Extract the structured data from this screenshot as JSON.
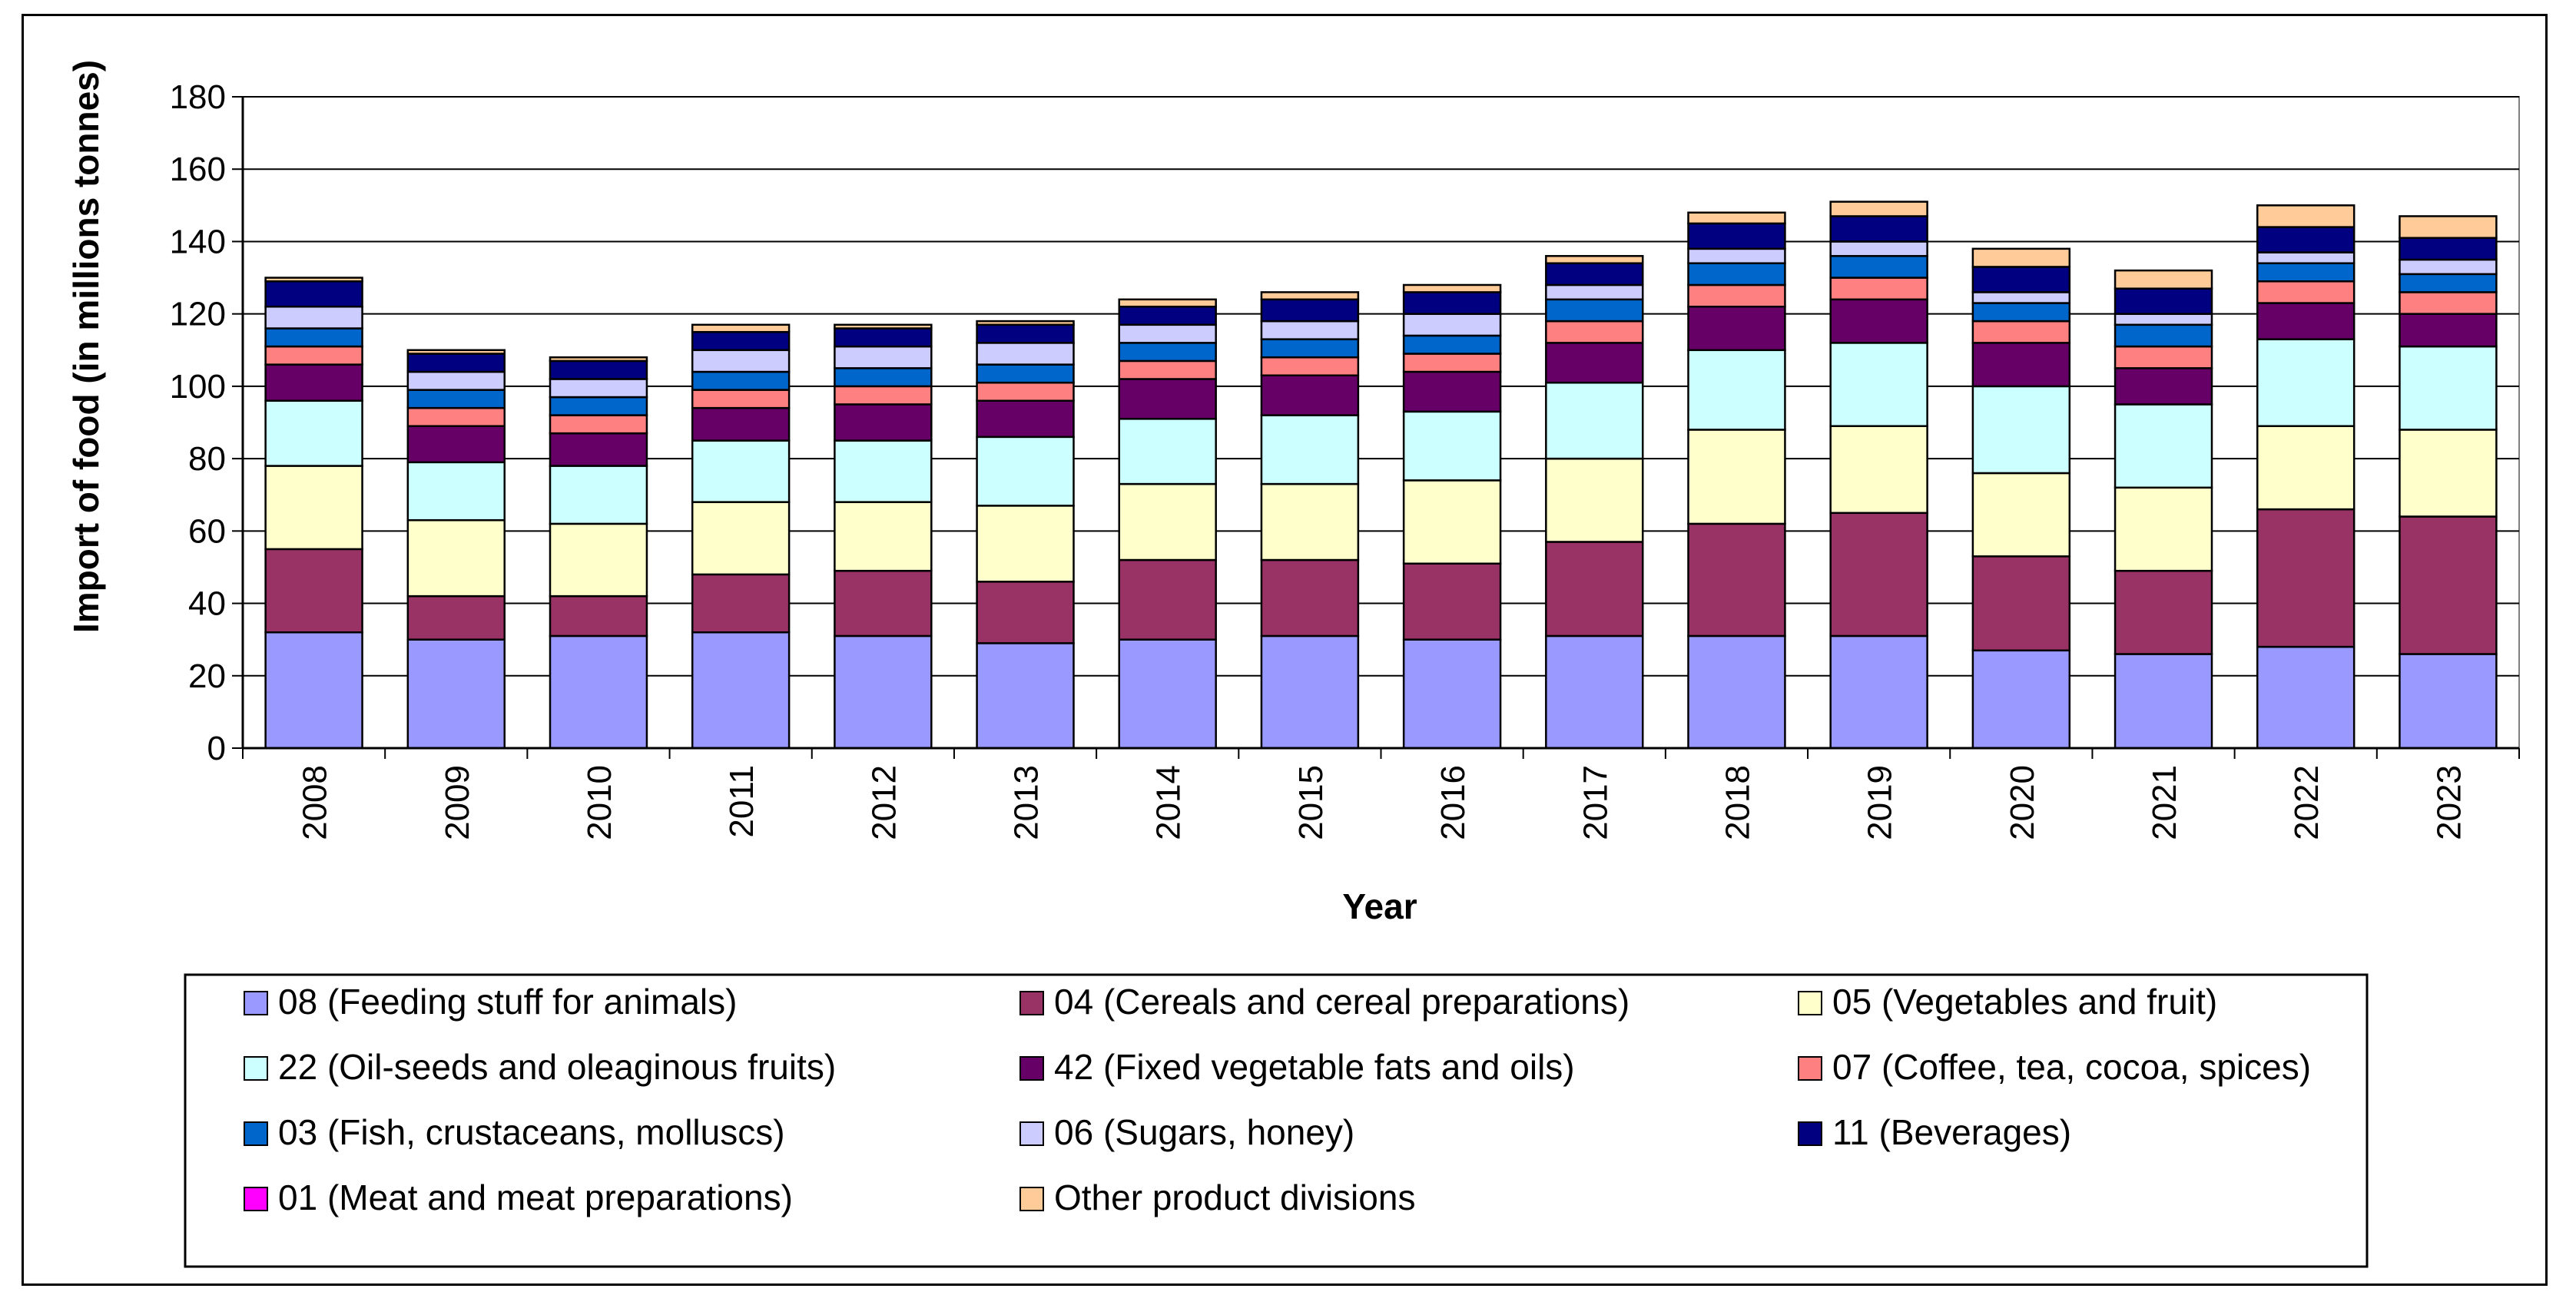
{
  "chart_data": {
    "type": "bar",
    "stacked": true,
    "title": "",
    "xlabel": "Year",
    "ylabel": "Import of food (in millions tonnes)",
    "ylim": [
      0,
      180
    ],
    "yticks": [
      0,
      20,
      40,
      60,
      80,
      100,
      120,
      140,
      160,
      180
    ],
    "grid": true,
    "legend_position": "bottom",
    "categories": [
      "2008",
      "2009",
      "2010",
      "2011",
      "2012",
      "2013",
      "2014",
      "2015",
      "2016",
      "2017",
      "2018",
      "2019",
      "2020",
      "2021",
      "2022",
      "2023"
    ],
    "series": [
      {
        "name": "08 (Feeding stuff for animals)",
        "color": "#9999ff",
        "values": [
          32,
          30,
          31,
          32,
          31,
          29,
          30,
          31,
          30,
          31,
          31,
          31,
          27,
          26,
          28,
          26
        ]
      },
      {
        "name": "04 (Cereals and cereal preparations)",
        "color": "#993366",
        "values": [
          23,
          12,
          11,
          16,
          18,
          17,
          22,
          21,
          21,
          26,
          31,
          34,
          26,
          23,
          38,
          38
        ]
      },
      {
        "name": "05 (Vegetables and fruit)",
        "color": "#ffffcc",
        "values": [
          23,
          21,
          20,
          20,
          19,
          21,
          21,
          21,
          23,
          23,
          26,
          24,
          23,
          23,
          23,
          24
        ]
      },
      {
        "name": "22 (Oil-seeds and oleaginous fruits)",
        "color": "#ccffff",
        "values": [
          18,
          16,
          16,
          17,
          17,
          19,
          18,
          19,
          19,
          21,
          22,
          23,
          24,
          23,
          24,
          23
        ]
      },
      {
        "name": "42 (Fixed vegetable fats and oils)",
        "color": "#660066",
        "values": [
          10,
          10,
          9,
          9,
          10,
          10,
          11,
          11,
          11,
          11,
          12,
          12,
          12,
          10,
          10,
          9
        ]
      },
      {
        "name": "07 (Coffee, tea, cocoa, spices)",
        "color": "#ff8080",
        "values": [
          5,
          5,
          5,
          5,
          5,
          5,
          5,
          5,
          5,
          6,
          6,
          6,
          6,
          6,
          6,
          6
        ]
      },
      {
        "name": "03 (Fish, crustaceans, molluscs)",
        "color": "#0066cc",
        "values": [
          5,
          5,
          5,
          5,
          5,
          5,
          5,
          5,
          5,
          6,
          6,
          6,
          5,
          6,
          5,
          5
        ]
      },
      {
        "name": "06 (Sugars, honey)",
        "color": "#ccccff",
        "values": [
          6,
          5,
          5,
          6,
          6,
          6,
          5,
          5,
          6,
          4,
          4,
          4,
          3,
          3,
          3,
          4
        ]
      },
      {
        "name": "11 (Beverages)",
        "color": "#000080",
        "values": [
          7,
          5,
          5,
          5,
          5,
          5,
          5,
          6,
          6,
          6,
          7,
          7,
          7,
          7,
          7,
          6
        ]
      },
      {
        "name": "01 (Meat and meat preparations)",
        "color": "#ff00ff",
        "values": [
          0,
          0,
          0,
          0,
          0,
          0,
          0,
          0,
          0,
          0,
          0,
          0,
          0,
          0,
          0,
          0
        ]
      },
      {
        "name": "Other product divisions",
        "color": "#ffcc99",
        "values": [
          1,
          1,
          1,
          2,
          1,
          1,
          2,
          2,
          2,
          2,
          3,
          4,
          5,
          5,
          6,
          6
        ]
      }
    ]
  }
}
